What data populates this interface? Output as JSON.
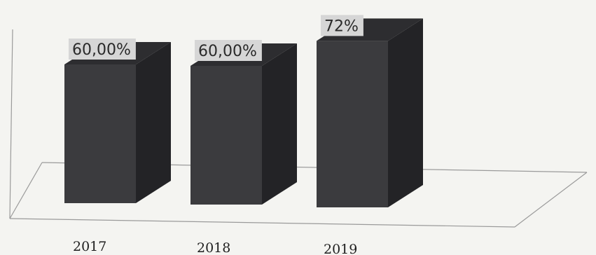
{
  "chart_data": {
    "type": "bar",
    "categories": [
      "2017",
      "2018",
      "2019"
    ],
    "values": [
      60,
      60,
      72
    ],
    "data_labels": [
      "60,00%",
      "60,00%",
      "72%"
    ],
    "ylim": [
      0,
      100
    ],
    "grid": false,
    "legend": "none",
    "three_d": true,
    "colors": {
      "bar_front": "#3b3b3e",
      "bar_side": "#232326",
      "bar_top": "#2d2d30",
      "label_bg": "#d6d6d6",
      "axis": "#9a9a9a"
    }
  }
}
